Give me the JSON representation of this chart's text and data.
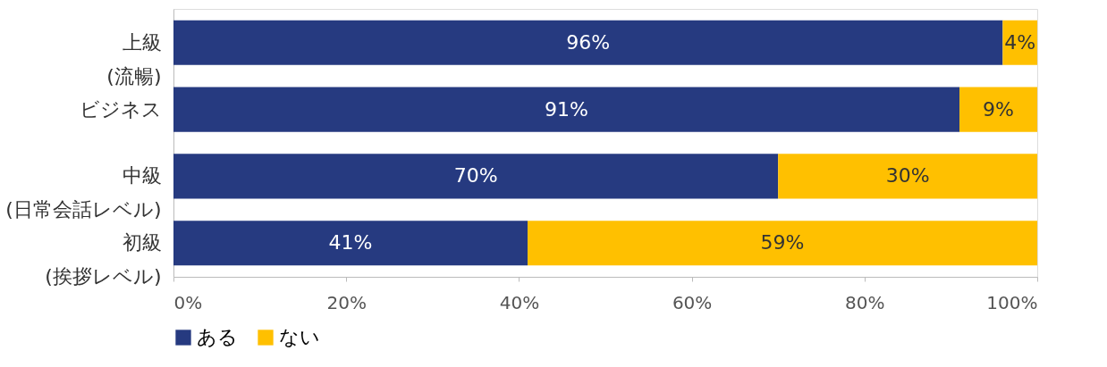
{
  "chart_data": {
    "type": "bar",
    "orientation": "horizontal",
    "stacked": true,
    "categories": [
      "上級\n(流暢)",
      "ビジネス",
      "中級\n(日常会話レベル)",
      "初級\n(挨拶レベル)"
    ],
    "series": [
      {
        "name": "ある",
        "color": "#263a80",
        "values": [
          96,
          91,
          70,
          41
        ],
        "value_labels": [
          "96%",
          "91%",
          "70%",
          "41%"
        ]
      },
      {
        "name": "ない",
        "color": "#ffc000",
        "values": [
          4,
          9,
          30,
          59
        ],
        "value_labels": [
          "4%",
          "9%",
          "30%",
          "59%"
        ]
      }
    ],
    "xlim": [
      0,
      100
    ],
    "xticks": [
      {
        "value": 0,
        "label": "0%"
      },
      {
        "value": 20,
        "label": "20%"
      },
      {
        "value": 40,
        "label": "40%"
      },
      {
        "value": 60,
        "label": "60%"
      },
      {
        "value": 80,
        "label": "80%"
      },
      {
        "value": 100,
        "label": "100%"
      }
    ],
    "grid": false,
    "legend": "bottom"
  }
}
